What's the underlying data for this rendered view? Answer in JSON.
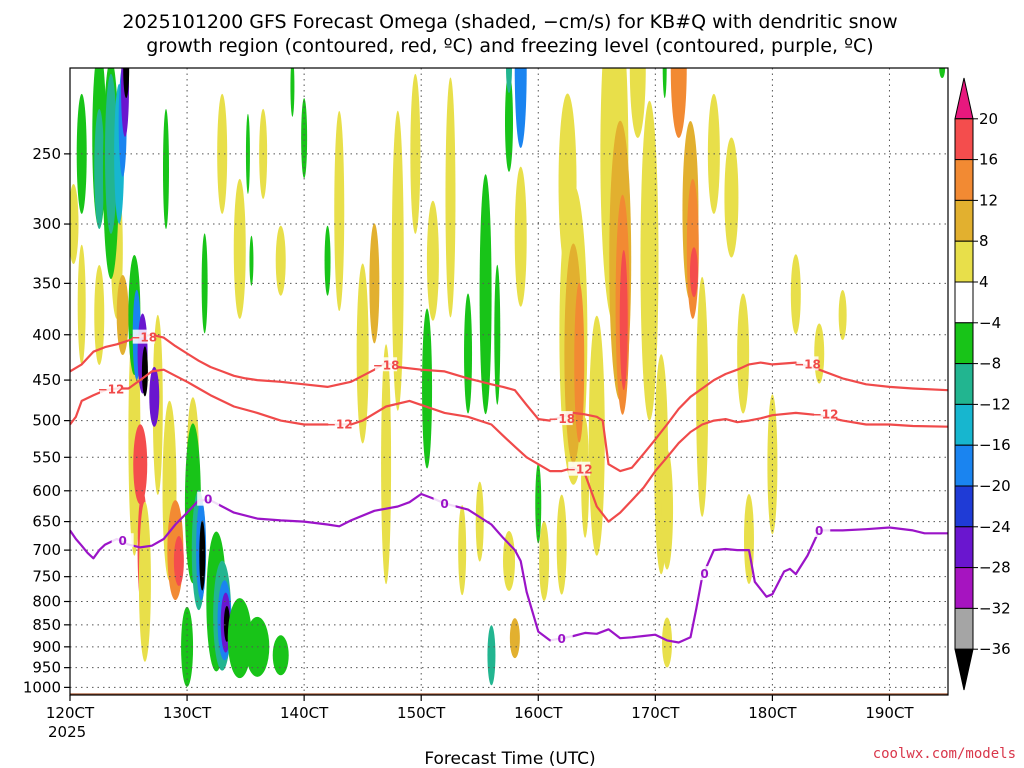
{
  "chart_data": {
    "type": "heatmap",
    "title_line1": "2025101200 GFS Forecast Omega (shaded, −cm/s) for KB#Q with dendritic snow",
    "title_line2": "growth region (contoured, red, ºC) and freezing level (contoured, purple, ºC)",
    "xlabel": "Forecast Time (UTC)",
    "x_year": "2025",
    "x_ticks": [
      {
        "value": 120,
        "label": "120CT"
      },
      {
        "value": 130,
        "label": "130CT"
      },
      {
        "value": 140,
        "label": "140CT"
      },
      {
        "value": 150,
        "label": "150CT"
      },
      {
        "value": 160,
        "label": "160CT"
      },
      {
        "value": 170,
        "label": "170CT"
      },
      {
        "value": 180,
        "label": "180CT"
      },
      {
        "value": 190,
        "label": "190CT"
      }
    ],
    "x_range": [
      120,
      195
    ],
    "y_ticks": [
      250,
      300,
      350,
      400,
      450,
      500,
      550,
      600,
      650,
      700,
      750,
      800,
      850,
      900,
      950,
      1000
    ],
    "y_range_hpa": [
      200,
      1020
    ],
    "y_scale": "log",
    "grid": true,
    "colorbar": {
      "labels": [
        "20",
        "16",
        "12",
        "8",
        "4",
        "−4",
        "−8",
        "−12",
        "−16",
        "−20",
        "−24",
        "−28",
        "−32",
        "−36"
      ],
      "colors": [
        "#e8187e",
        "#f44d4d",
        "#f28a33",
        "#e2b02f",
        "#e8df4a",
        "#ffffff",
        "#18c418",
        "#22b590",
        "#17b6cf",
        "#1a84f0",
        "#1f3bd6",
        "#6a16cf",
        "#a614c0",
        "#a5a5a5",
        "#000000"
      ]
    },
    "contour_labels": {
      "dgz_upper": "−18",
      "dgz_lower": "−12",
      "freezing": "0"
    },
    "dgz_upper_hpa": [
      [
        120,
        440
      ],
      [
        121,
        432
      ],
      [
        122,
        418
      ],
      [
        123,
        413
      ],
      [
        124,
        410
      ],
      [
        125,
        406
      ],
      [
        126,
        402
      ],
      [
        127,
        400
      ],
      [
        128,
        403
      ],
      [
        129,
        412
      ],
      [
        130,
        420
      ],
      [
        131,
        428
      ],
      [
        132,
        435
      ],
      [
        133,
        440
      ],
      [
        134,
        445
      ],
      [
        135,
        448
      ],
      [
        136,
        450
      ],
      [
        138,
        452
      ],
      [
        140,
        455
      ],
      [
        142,
        458
      ],
      [
        144,
        452
      ],
      [
        146,
        438
      ],
      [
        147,
        430
      ],
      [
        148,
        435
      ],
      [
        150,
        438
      ],
      [
        152,
        440
      ],
      [
        154,
        448
      ],
      [
        156,
        455
      ],
      [
        157,
        458
      ],
      [
        158,
        462
      ],
      [
        159,
        480
      ],
      [
        160,
        498
      ],
      [
        161,
        500
      ],
      [
        162,
        495
      ],
      [
        163,
        490
      ],
      [
        164,
        492
      ],
      [
        165,
        495
      ],
      [
        165.5,
        500
      ],
      [
        166,
        560
      ],
      [
        167,
        570
      ],
      [
        168,
        565
      ],
      [
        169,
        545
      ],
      [
        170,
        525
      ],
      [
        171,
        505
      ],
      [
        172,
        485
      ],
      [
        173,
        470
      ],
      [
        174,
        460
      ],
      [
        175,
        450
      ],
      [
        176,
        443
      ],
      [
        177,
        438
      ],
      [
        178,
        432
      ],
      [
        179,
        430
      ],
      [
        180,
        432
      ],
      [
        182,
        430
      ],
      [
        184,
        438
      ],
      [
        186,
        448
      ],
      [
        188,
        455
      ],
      [
        190,
        458
      ],
      [
        192,
        460
      ],
      [
        195,
        462
      ]
    ],
    "dgz_lower_hpa": [
      [
        120,
        505
      ],
      [
        120.5,
        495
      ],
      [
        121,
        475
      ],
      [
        122,
        468
      ],
      [
        123,
        462
      ],
      [
        124,
        460
      ],
      [
        125,
        460
      ],
      [
        126,
        450
      ],
      [
        127,
        440
      ],
      [
        128,
        438
      ],
      [
        129,
        445
      ],
      [
        130,
        452
      ],
      [
        131,
        460
      ],
      [
        132,
        468
      ],
      [
        133,
        475
      ],
      [
        134,
        482
      ],
      [
        136,
        490
      ],
      [
        138,
        500
      ],
      [
        140,
        505
      ],
      [
        142,
        505
      ],
      [
        144,
        505
      ],
      [
        145,
        500
      ],
      [
        147,
        482
      ],
      [
        149,
        475
      ],
      [
        150,
        480
      ],
      [
        152,
        490
      ],
      [
        154,
        495
      ],
      [
        156,
        505
      ],
      [
        157,
        520
      ],
      [
        158,
        535
      ],
      [
        159,
        550
      ],
      [
        160,
        560
      ],
      [
        161,
        570
      ],
      [
        162,
        570
      ],
      [
        163,
        565
      ],
      [
        164,
        575
      ],
      [
        165,
        625
      ],
      [
        166,
        650
      ],
      [
        167,
        635
      ],
      [
        168,
        615
      ],
      [
        169,
        595
      ],
      [
        170,
        570
      ],
      [
        171,
        550
      ],
      [
        172,
        530
      ],
      [
        173,
        515
      ],
      [
        174,
        505
      ],
      [
        175,
        500
      ],
      [
        176,
        498
      ],
      [
        177,
        502
      ],
      [
        178,
        500
      ],
      [
        179,
        497
      ],
      [
        180,
        493
      ],
      [
        182,
        490
      ],
      [
        184,
        493
      ],
      [
        186,
        500
      ],
      [
        188,
        505
      ],
      [
        190,
        505
      ],
      [
        192,
        507
      ],
      [
        195,
        508
      ]
    ],
    "freezing_hpa": [
      [
        120,
        665
      ],
      [
        120.5,
        680
      ],
      [
        121,
        692
      ],
      [
        121.5,
        705
      ],
      [
        122,
        715
      ],
      [
        122.5,
        700
      ],
      [
        123,
        690
      ],
      [
        124,
        680
      ],
      [
        125,
        690
      ],
      [
        126,
        695
      ],
      [
        127,
        692
      ],
      [
        128,
        680
      ],
      [
        129,
        655
      ],
      [
        130,
        635
      ],
      [
        131,
        615
      ],
      [
        132,
        615
      ],
      [
        133,
        625
      ],
      [
        134,
        635
      ],
      [
        136,
        645
      ],
      [
        138,
        648
      ],
      [
        140,
        650
      ],
      [
        142,
        655
      ],
      [
        143,
        658
      ],
      [
        144,
        648
      ],
      [
        146,
        632
      ],
      [
        148,
        625
      ],
      [
        149,
        618
      ],
      [
        150,
        605
      ],
      [
        151,
        612
      ],
      [
        152,
        620
      ],
      [
        154,
        630
      ],
      [
        156,
        655
      ],
      [
        157,
        678
      ],
      [
        158,
        700
      ],
      [
        158.5,
        720
      ],
      [
        159,
        780
      ],
      [
        160,
        865
      ],
      [
        161,
        885
      ],
      [
        162,
        880
      ],
      [
        163,
        875
      ],
      [
        164,
        868
      ],
      [
        165,
        870
      ],
      [
        166,
        860
      ],
      [
        167,
        880
      ],
      [
        168,
        878
      ],
      [
        169,
        875
      ],
      [
        170,
        872
      ],
      [
        171,
        885
      ],
      [
        172,
        890
      ],
      [
        173,
        878
      ],
      [
        173.5,
        815
      ],
      [
        174,
        750
      ],
      [
        175,
        700
      ],
      [
        176,
        698
      ],
      [
        177,
        700
      ],
      [
        178,
        700
      ],
      [
        178.5,
        760
      ],
      [
        179.5,
        790
      ],
      [
        180,
        785
      ],
      [
        181,
        740
      ],
      [
        181.5,
        735
      ],
      [
        182,
        745
      ],
      [
        183,
        710
      ],
      [
        184,
        665
      ],
      [
        186,
        665
      ],
      [
        188,
        663
      ],
      [
        190,
        660
      ],
      [
        192,
        665
      ],
      [
        193,
        670
      ],
      [
        195,
        670
      ]
    ],
    "surface_hpa": [
      1000,
      1020
    ]
  },
  "credit": "coolwx.com/models"
}
